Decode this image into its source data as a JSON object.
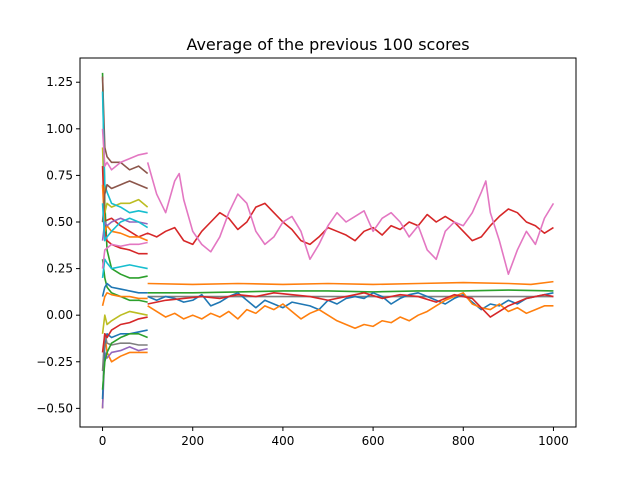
{
  "chart_data": {
    "type": "line",
    "title": "Average of the previous 100 scores",
    "xlabel": "",
    "ylabel": "",
    "xlim": [
      -50,
      1050
    ],
    "ylim": [
      -0.6,
      1.38
    ],
    "x_ticks": [
      0,
      200,
      400,
      600,
      800,
      1000
    ],
    "x_tick_labels": [
      "0",
      "200",
      "400",
      "600",
      "800",
      "1000"
    ],
    "y_ticks": [
      -0.5,
      -0.25,
      0.0,
      0.25,
      0.5,
      0.75,
      1.0,
      1.25
    ],
    "y_tick_labels": [
      "−0.50",
      "−0.25",
      "0.00",
      "0.25",
      "0.50",
      "0.75",
      "1.00",
      "1.25"
    ],
    "grid": false,
    "legend": "none",
    "series": [
      {
        "color": "#d62728",
        "x": [
          0,
          20,
          40,
          60,
          80,
          100,
          120,
          140,
          160,
          180,
          200,
          220,
          240,
          260,
          280,
          300,
          320,
          340,
          360,
          380,
          400,
          420,
          440,
          460,
          480,
          500,
          520,
          540,
          560,
          580,
          600,
          620,
          640,
          660,
          680,
          700,
          720,
          740,
          760,
          780,
          800,
          820,
          840,
          860,
          880,
          900,
          920,
          940,
          960,
          980,
          1000
        ],
        "values": [
          0.5,
          0.52,
          0.48,
          0.45,
          0.42,
          0.44,
          0.42,
          0.45,
          0.47,
          0.4,
          0.38,
          0.45,
          0.5,
          0.55,
          0.52,
          0.46,
          0.5,
          0.58,
          0.6,
          0.55,
          0.5,
          0.46,
          0.4,
          0.38,
          0.42,
          0.47,
          0.45,
          0.43,
          0.4,
          0.45,
          0.47,
          0.43,
          0.48,
          0.46,
          0.5,
          0.48,
          0.54,
          0.5,
          0.53,
          0.5,
          0.45,
          0.4,
          0.42,
          0.48,
          0.53,
          0.57,
          0.55,
          0.5,
          0.48,
          0.44,
          0.47
        ]
      },
      {
        "color": "#e377c2",
        "x": [
          100,
          120,
          140,
          160,
          170,
          180,
          200,
          220,
          240,
          260,
          280,
          300,
          320,
          340,
          360,
          380,
          400,
          420,
          440,
          460,
          480,
          500,
          520,
          540,
          560,
          580,
          600,
          620,
          640,
          660,
          680,
          700,
          720,
          740,
          760,
          780,
          800,
          820,
          840,
          850,
          860,
          880,
          900,
          920,
          940,
          960,
          980,
          1000
        ],
        "values": [
          0.82,
          0.65,
          0.55,
          0.72,
          0.76,
          0.62,
          0.45,
          0.38,
          0.34,
          0.42,
          0.55,
          0.65,
          0.6,
          0.45,
          0.38,
          0.42,
          0.5,
          0.53,
          0.45,
          0.3,
          0.38,
          0.48,
          0.55,
          0.5,
          0.53,
          0.56,
          0.45,
          0.52,
          0.55,
          0.5,
          0.42,
          0.48,
          0.35,
          0.3,
          0.45,
          0.5,
          0.48,
          0.55,
          0.66,
          0.72,
          0.55,
          0.4,
          0.22,
          0.35,
          0.45,
          0.38,
          0.52,
          0.6
        ]
      },
      {
        "color": "#ff7f0e",
        "x": [
          100,
          200,
          300,
          400,
          500,
          600,
          700,
          800,
          900,
          950,
          1000
        ],
        "values": [
          0.17,
          0.165,
          0.17,
          0.165,
          0.17,
          0.165,
          0.17,
          0.175,
          0.17,
          0.165,
          0.18
        ]
      },
      {
        "color": "#2ca02c",
        "x": [
          100,
          200,
          300,
          400,
          500,
          600,
          700,
          800,
          900,
          1000
        ],
        "values": [
          0.12,
          0.12,
          0.125,
          0.13,
          0.13,
          0.125,
          0.13,
          0.13,
          0.135,
          0.13
        ]
      },
      {
        "color": "#7f7f7f",
        "x": [
          100,
          200,
          300,
          400,
          500,
          600,
          700,
          800,
          900,
          1000
        ],
        "values": [
          0.1,
          0.1,
          0.1,
          0.1,
          0.1,
          0.1,
          0.1,
          0.1,
          0.1,
          0.1
        ]
      },
      {
        "color": "#1f77b4",
        "x": [
          100,
          120,
          140,
          160,
          180,
          200,
          220,
          240,
          260,
          280,
          300,
          320,
          340,
          360,
          380,
          400,
          420,
          440,
          460,
          480,
          500,
          520,
          540,
          560,
          580,
          600,
          620,
          640,
          660,
          680,
          700,
          720,
          740,
          760,
          780,
          800,
          820,
          840,
          860,
          880,
          900,
          920,
          940,
          960,
          980,
          1000
        ],
        "values": [
          0.1,
          0.08,
          0.1,
          0.09,
          0.07,
          0.08,
          0.11,
          0.05,
          0.07,
          0.1,
          0.12,
          0.08,
          0.04,
          0.08,
          0.06,
          0.04,
          0.07,
          0.06,
          0.05,
          0.03,
          0.08,
          0.06,
          0.09,
          0.1,
          0.09,
          0.12,
          0.1,
          0.06,
          0.09,
          0.11,
          0.12,
          0.1,
          0.08,
          0.06,
          0.09,
          0.11,
          0.07,
          0.03,
          0.06,
          0.05,
          0.08,
          0.06,
          0.09,
          0.1,
          0.11,
          0.12
        ]
      },
      {
        "color": "#ff7f0e",
        "x": [
          100,
          120,
          140,
          160,
          180,
          200,
          220,
          240,
          260,
          280,
          300,
          320,
          340,
          360,
          380,
          400,
          420,
          440,
          460,
          480,
          500,
          520,
          540,
          560,
          580,
          600,
          620,
          640,
          660,
          680,
          700,
          720,
          740,
          760,
          780,
          800,
          820,
          840,
          860,
          880,
          900,
          920,
          940,
          960,
          980,
          1000
        ],
        "values": [
          0.05,
          0.02,
          -0.01,
          0.01,
          -0.02,
          0.0,
          -0.02,
          0.01,
          -0.01,
          0.02,
          -0.02,
          0.03,
          0.01,
          0.05,
          0.03,
          0.06,
          0.02,
          -0.02,
          0.01,
          0.03,
          0.0,
          -0.03,
          -0.05,
          -0.07,
          -0.05,
          -0.06,
          -0.03,
          -0.04,
          -0.01,
          -0.03,
          0.0,
          0.02,
          0.05,
          0.08,
          0.1,
          0.12,
          0.06,
          0.04,
          0.03,
          0.06,
          0.02,
          0.04,
          0.01,
          0.03,
          0.05,
          0.05
        ]
      },
      {
        "color": "#d62728",
        "x": [
          100,
          140,
          180,
          220,
          260,
          300,
          340,
          380,
          420,
          460,
          500,
          540,
          580,
          620,
          660,
          700,
          740,
          780,
          820,
          860,
          900,
          940,
          980,
          1000
        ],
        "values": [
          0.06,
          0.08,
          0.09,
          0.1,
          0.09,
          0.11,
          0.1,
          0.12,
          0.11,
          0.1,
          0.08,
          0.1,
          0.12,
          0.09,
          0.11,
          0.1,
          0.07,
          0.11,
          0.09,
          -0.01,
          0.05,
          0.09,
          0.11,
          0.1
        ]
      },
      {
        "color": "#2ca02c",
        "x": [
          0,
          5,
          10,
          20,
          40,
          60,
          80,
          100
        ],
        "values": [
          1.3,
          0.6,
          0.35,
          0.25,
          0.22,
          0.2,
          0.2,
          0.21
        ]
      },
      {
        "color": "#ff7f0e",
        "x": [
          0,
          5,
          10,
          20,
          40,
          60,
          80,
          100
        ],
        "values": [
          -0.5,
          -0.1,
          -0.2,
          -0.25,
          -0.22,
          -0.2,
          -0.2,
          -0.2
        ]
      },
      {
        "color": "#8c564b",
        "x": [
          0,
          5,
          10,
          20,
          40,
          60,
          80,
          100
        ],
        "values": [
          1.28,
          0.9,
          0.85,
          0.82,
          0.82,
          0.78,
          0.8,
          0.76
        ]
      },
      {
        "color": "#9467bd",
        "x": [
          0,
          5,
          10,
          20,
          40,
          60,
          80,
          100
        ],
        "values": [
          -0.5,
          -0.2,
          -0.23,
          -0.2,
          -0.19,
          -0.17,
          -0.19,
          -0.18
        ]
      },
      {
        "color": "#bcbd22",
        "x": [
          0,
          5,
          10,
          20,
          40,
          60,
          80,
          100
        ],
        "values": [
          0.9,
          0.55,
          0.6,
          0.58,
          0.6,
          0.6,
          0.62,
          0.58
        ]
      },
      {
        "color": "#17becf",
        "x": [
          0,
          5,
          10,
          20,
          40,
          60,
          80,
          100
        ],
        "values": [
          1.2,
          0.7,
          0.66,
          0.6,
          0.58,
          0.55,
          0.56,
          0.55
        ]
      },
      {
        "color": "#1f77b4",
        "x": [
          0,
          5,
          10,
          20,
          40,
          60,
          80,
          100
        ],
        "values": [
          -0.45,
          -0.15,
          -0.1,
          -0.12,
          -0.1,
          -0.1,
          -0.09,
          -0.08
        ]
      },
      {
        "color": "#e377c2",
        "x": [
          0,
          5,
          10,
          20,
          40,
          60,
          80,
          100
        ],
        "values": [
          1.0,
          0.8,
          0.82,
          0.78,
          0.82,
          0.84,
          0.86,
          0.87
        ]
      },
      {
        "color": "#7f7f7f",
        "x": [
          0,
          5,
          10,
          20,
          40,
          60,
          80,
          100
        ],
        "values": [
          -0.3,
          -0.1,
          -0.15,
          -0.16,
          -0.15,
          -0.15,
          -0.16,
          -0.16
        ]
      },
      {
        "color": "#d62728",
        "x": [
          0,
          5,
          10,
          20,
          40,
          60,
          80,
          100
        ],
        "values": [
          0.8,
          0.45,
          0.4,
          0.38,
          0.36,
          0.35,
          0.33,
          0.33
        ]
      },
      {
        "color": "#2ca02c",
        "x": [
          0,
          5,
          10,
          20,
          40,
          60,
          80,
          100
        ],
        "values": [
          0.3,
          0.2,
          0.15,
          0.12,
          0.1,
          0.08,
          0.08,
          0.07
        ]
      },
      {
        "color": "#ff7f0e",
        "x": [
          0,
          5,
          10,
          20,
          40,
          60,
          80,
          100
        ],
        "values": [
          0.7,
          0.45,
          0.48,
          0.45,
          0.44,
          0.42,
          0.42,
          0.4
        ]
      },
      {
        "color": "#bcbd22",
        "x": [
          0,
          5,
          10,
          20,
          40,
          60,
          80,
          100
        ],
        "values": [
          -0.1,
          0.0,
          -0.05,
          -0.03,
          0.0,
          0.02,
          0.01,
          0.0
        ]
      },
      {
        "color": "#17becf",
        "x": [
          0,
          5,
          10,
          20,
          40,
          60,
          80,
          100
        ],
        "values": [
          0.2,
          0.3,
          0.28,
          0.25,
          0.26,
          0.27,
          0.26,
          0.25
        ]
      },
      {
        "color": "#8c564b",
        "x": [
          0,
          5,
          10,
          20,
          40,
          60,
          80,
          100
        ],
        "values": [
          0.5,
          0.65,
          0.7,
          0.68,
          0.7,
          0.72,
          0.7,
          0.68
        ]
      },
      {
        "color": "#1f77b4",
        "x": [
          0,
          5,
          10,
          20,
          40,
          60,
          80,
          100
        ],
        "values": [
          0.1,
          0.15,
          0.17,
          0.15,
          0.14,
          0.13,
          0.12,
          0.12
        ]
      },
      {
        "color": "#9467bd",
        "x": [
          0,
          5,
          10,
          20,
          40,
          60,
          80,
          100
        ],
        "values": [
          0.4,
          0.5,
          0.48,
          0.5,
          0.52,
          0.5,
          0.5,
          0.49
        ]
      },
      {
        "color": "#d62728",
        "x": [
          0,
          5,
          10,
          20,
          40,
          60,
          80,
          100
        ],
        "values": [
          -0.2,
          -0.1,
          -0.12,
          -0.08,
          -0.05,
          -0.04,
          -0.02,
          -0.01
        ]
      },
      {
        "color": "#e377c2",
        "x": [
          0,
          5,
          10,
          20,
          40,
          60,
          80,
          100
        ],
        "values": [
          0.25,
          0.35,
          0.36,
          0.38,
          0.37,
          0.38,
          0.38,
          0.39
        ]
      },
      {
        "color": "#2ca02c",
        "x": [
          0,
          5,
          10,
          20,
          40,
          60,
          80,
          100
        ],
        "values": [
          -0.4,
          -0.25,
          -0.2,
          -0.15,
          -0.12,
          -0.1,
          -0.1,
          -0.12
        ]
      },
      {
        "color": "#17becf",
        "x": [
          0,
          5,
          10,
          20,
          40,
          60,
          80,
          100
        ],
        "values": [
          0.6,
          0.4,
          0.42,
          0.45,
          0.5,
          0.52,
          0.5,
          0.47
        ]
      },
      {
        "color": "#ff7f0e",
        "x": [
          0,
          5,
          10,
          20,
          40,
          60,
          80,
          100
        ],
        "values": [
          0.05,
          0.1,
          0.12,
          0.11,
          0.1,
          0.1,
          0.09,
          0.09
        ]
      }
    ]
  }
}
